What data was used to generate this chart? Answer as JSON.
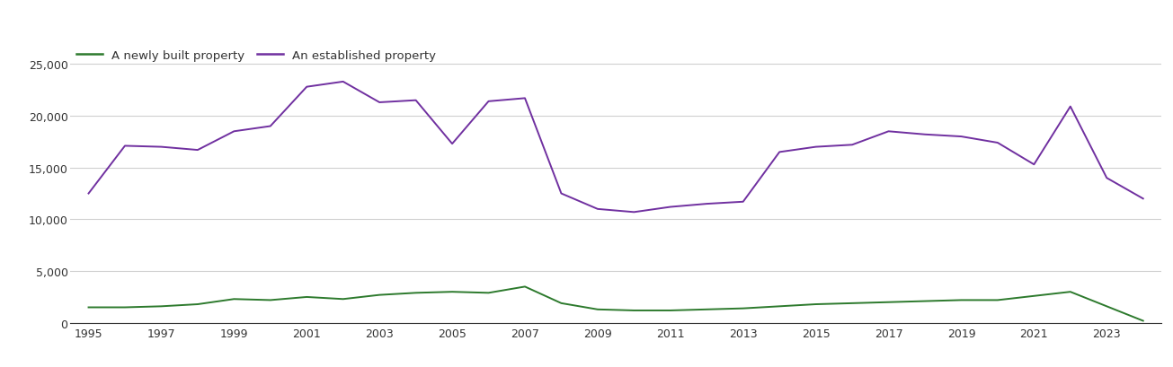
{
  "years": [
    1995,
    1996,
    1997,
    1998,
    1999,
    2000,
    2001,
    2002,
    2003,
    2004,
    2005,
    2006,
    2007,
    2008,
    2009,
    2010,
    2011,
    2012,
    2013,
    2014,
    2015,
    2016,
    2017,
    2018,
    2019,
    2020,
    2021,
    2022,
    2023,
    2024
  ],
  "new_build": [
    1500,
    1500,
    1600,
    1800,
    2300,
    2200,
    2500,
    2300,
    2700,
    2900,
    3000,
    2900,
    3500,
    1900,
    1300,
    1200,
    1200,
    1300,
    1400,
    1600,
    1800,
    1900,
    2000,
    2100,
    2200,
    2200,
    2600,
    3000,
    1600,
    200
  ],
  "established": [
    12500,
    17100,
    17000,
    16700,
    18500,
    19000,
    22800,
    23300,
    21300,
    21500,
    17300,
    21400,
    21700,
    12500,
    11000,
    10700,
    11200,
    11500,
    11700,
    16500,
    17000,
    17200,
    18500,
    18200,
    18000,
    17400,
    15300,
    20900,
    14000,
    12000
  ],
  "new_build_color": "#2d7a2d",
  "established_color": "#7030a0",
  "new_build_label": "A newly built property",
  "established_label": "An established property",
  "ylim_bottom": 0,
  "ylim_top": 27000,
  "yticks": [
    0,
    5000,
    10000,
    15000,
    20000,
    25000
  ],
  "ytick_labels": [
    "0",
    "5,000",
    "10,000",
    "15,000",
    "20,000",
    "25,000"
  ],
  "xlim_left": 1994.5,
  "xlim_right": 2024.5,
  "xticks": [
    1995,
    1997,
    1999,
    2001,
    2003,
    2005,
    2007,
    2009,
    2011,
    2013,
    2015,
    2017,
    2019,
    2021,
    2023
  ],
  "background_color": "#ffffff",
  "grid_color": "#d0d0d0",
  "line_width": 1.4,
  "tick_label_fontsize": 9,
  "legend_fontsize": 9.5
}
